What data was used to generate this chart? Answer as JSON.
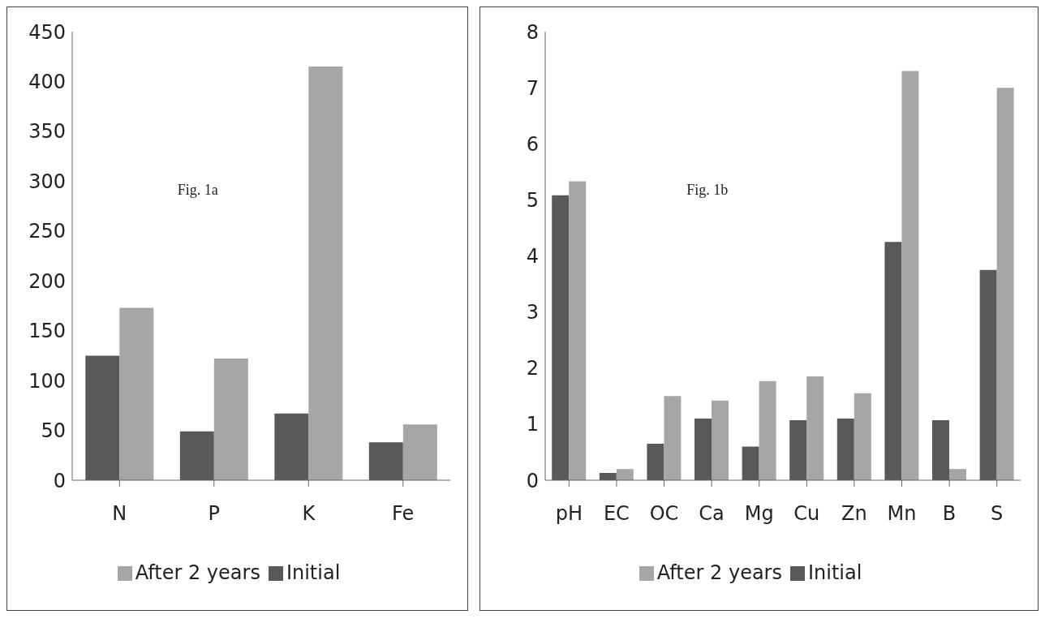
{
  "chart_data": [
    {
      "type": "bar",
      "categories": [
        "N",
        "P",
        "K",
        "Fe"
      ],
      "series": [
        {
          "name": "Initial",
          "color": "#595959",
          "values": [
            125,
            49,
            67,
            38
          ]
        },
        {
          "name": "After 2 years",
          "color": "#a6a6a6",
          "values": [
            173,
            122,
            415,
            56
          ]
        }
      ],
      "ylim": [
        0,
        450
      ],
      "yticks": [
        0,
        50,
        100,
        150,
        200,
        250,
        300,
        350,
        400,
        450
      ],
      "grid": false,
      "legend": "bottom",
      "annotations": [
        "Fig.  1a"
      ]
    },
    {
      "type": "bar",
      "categories": [
        "pH",
        "EC",
        "OC",
        "Ca",
        "Mg",
        "Cu",
        "Zn",
        "Mn",
        "B",
        "S"
      ],
      "series": [
        {
          "name": "Initial",
          "color": "#595959",
          "values": [
            5.08,
            0.13,
            0.65,
            1.1,
            0.6,
            1.07,
            1.1,
            4.25,
            1.07,
            3.75
          ]
        },
        {
          "name": "After 2 years",
          "color": "#a6a6a6",
          "values": [
            5.33,
            0.2,
            1.5,
            1.42,
            1.77,
            1.85,
            1.55,
            7.3,
            0.2,
            7.0
          ]
        }
      ],
      "ylim": [
        0,
        8
      ],
      "yticks": [
        0,
        1,
        2,
        3,
        4,
        5,
        6,
        7,
        8
      ],
      "grid": false,
      "legend": "bottom",
      "annotations": [
        "Fig.  1b"
      ]
    }
  ]
}
